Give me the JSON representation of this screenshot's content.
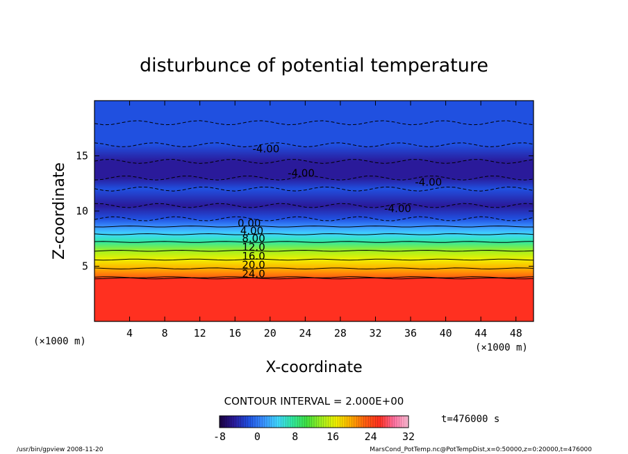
{
  "chart_data": {
    "type": "heatmap",
    "title": "disturbunce of potential temperature",
    "xlabel": "X-coordinate",
    "ylabel": "Z-coordinate",
    "x_unit": "(×1000 m)",
    "y_unit": "(×1000 m)",
    "xlim": [
      0,
      50
    ],
    "ylim": [
      0,
      20
    ],
    "xticks": [
      4,
      8,
      12,
      16,
      20,
      24,
      28,
      32,
      36,
      40,
      44,
      48
    ],
    "yticks": [
      5,
      10,
      15
    ],
    "contour_interval_text": "CONTOUR INTERVAL = 2.000E+00",
    "time_text": "t=476000 s",
    "colorbar": {
      "min": -8,
      "max": 32,
      "ticks": [
        -8,
        0,
        8,
        16,
        24,
        32
      ],
      "colors": [
        "#1a0040",
        "#2a1a9a",
        "#2050e0",
        "#3a90ff",
        "#40d8ff",
        "#30e8a0",
        "#40e040",
        "#a0f020",
        "#f0f000",
        "#ffb000",
        "#ff6010",
        "#ff3020",
        "#ff70a0",
        "#ffc0d8"
      ]
    },
    "contour_labels": [
      {
        "text": "-4.00",
        "x": 18.0,
        "y": 15.3
      },
      {
        "text": "-4.00",
        "x": 22.0,
        "y": 13.1
      },
      {
        "text": "-4.00",
        "x": 36.5,
        "y": 12.3
      },
      {
        "text": "-4.00",
        "x": 33.0,
        "y": 9.9
      },
      {
        "text": "0.00",
        "x": 16.3,
        "y": 8.6
      },
      {
        "text": "4.00",
        "x": 16.6,
        "y": 7.9
      },
      {
        "text": "8.00",
        "x": 16.8,
        "y": 7.2
      },
      {
        "text": "12.0",
        "x": 16.8,
        "y": 6.4
      },
      {
        "text": "16.0",
        "x": 16.8,
        "y": 5.6
      },
      {
        "text": "20.0",
        "x": 16.8,
        "y": 4.8
      },
      {
        "text": "24.0",
        "x": 16.8,
        "y": 4.0
      }
    ],
    "vertical_profile": [
      {
        "z": 0.0,
        "value": 26
      },
      {
        "z": 3.9,
        "value": 26
      },
      {
        "z": 4.0,
        "value": 24
      },
      {
        "z": 4.8,
        "value": 20
      },
      {
        "z": 5.6,
        "value": 16
      },
      {
        "z": 6.4,
        "value": 12
      },
      {
        "z": 7.2,
        "value": 8
      },
      {
        "z": 7.9,
        "value": 4
      },
      {
        "z": 8.6,
        "value": 0
      },
      {
        "z": 9.3,
        "value": -2
      },
      {
        "z": 10.5,
        "value": -4
      },
      {
        "z": 12.0,
        "value": -3
      },
      {
        "z": 13.0,
        "value": -4
      },
      {
        "z": 14.5,
        "value": -5
      },
      {
        "z": 16.0,
        "value": -2
      },
      {
        "z": 18.0,
        "value": -3
      },
      {
        "z": 20.0,
        "value": -2
      }
    ]
  },
  "footer": {
    "left": "/usr/bin/gpview   2008-11-20",
    "right": "MarsCond_PotTemp.nc@PotTempDist,x=0:50000,z=0:20000,t=476000"
  }
}
